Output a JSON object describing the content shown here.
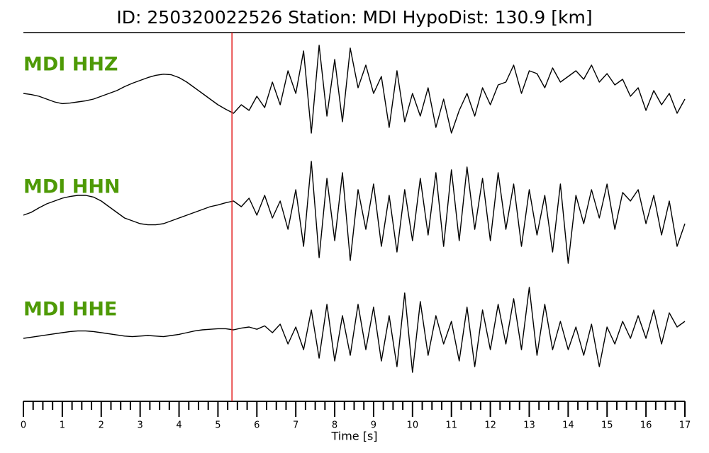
{
  "chart_data": {
    "type": "line",
    "title": "ID: 250320022526   Station: MDI   HypoDist:   130.9 [km]",
    "xlabel": "Time [s]",
    "xlim": [
      0,
      17
    ],
    "xticks": [
      0,
      1,
      2,
      3,
      4,
      5,
      6,
      7,
      8,
      9,
      10,
      11,
      12,
      13,
      14,
      15,
      16,
      17
    ],
    "xticks_minor": [
      0.25,
      0.5,
      0.75,
      1.25,
      1.5,
      1.75,
      2.25,
      2.5,
      2.75,
      3.25,
      3.5,
      3.75,
      4.25,
      4.5,
      4.75,
      5.25,
      5.5,
      5.75,
      6.25,
      6.5,
      6.75,
      7.25,
      7.5,
      7.75,
      8.25,
      8.5,
      8.75,
      9.25,
      9.5,
      9.75,
      10.25,
      10.5,
      10.75,
      11.25,
      11.5,
      11.75,
      12.25,
      12.5,
      12.75,
      13.25,
      13.5,
      13.75,
      14.25,
      14.5,
      14.75,
      15.25,
      15.5,
      15.75,
      16.25,
      16.5,
      16.75
    ],
    "ylim": [
      -1,
      1
    ],
    "pick_time": 5.36,
    "pick_color": "#e31a1c",
    "label_color": "#4e9a06",
    "x": [
      0,
      0.2,
      0.4,
      0.6,
      0.8,
      1,
      1.2,
      1.4,
      1.6,
      1.8,
      2,
      2.2,
      2.4,
      2.6,
      2.8,
      3,
      3.2,
      3.4,
      3.6,
      3.8,
      4,
      4.2,
      4.4,
      4.6,
      4.8,
      5,
      5.2,
      5.4,
      5.6,
      5.8,
      6,
      6.2,
      6.4,
      6.6,
      6.8,
      7,
      7.2,
      7.4,
      7.6,
      7.8,
      8,
      8.2,
      8.4,
      8.6,
      8.8,
      9,
      9.2,
      9.4,
      9.6,
      9.8,
      10,
      10.2,
      10.4,
      10.6,
      10.8,
      11,
      11.2,
      11.4,
      11.6,
      11.8,
      12,
      12.2,
      12.4,
      12.6,
      12.8,
      13,
      13.2,
      13.4,
      13.6,
      13.8,
      14,
      14.2,
      14.4,
      14.6,
      14.8,
      15,
      15.2,
      15.4,
      15.6,
      15.8,
      16,
      16.2,
      16.4,
      16.6,
      16.8,
      17
    ],
    "series": [
      {
        "name": "MDI HHZ",
        "color": "#000000",
        "values": [
          0.1,
          0.08,
          0.05,
          0.0,
          -0.05,
          -0.08,
          -0.07,
          -0.05,
          -0.03,
          0.0,
          0.05,
          0.1,
          0.15,
          0.22,
          0.28,
          0.33,
          0.38,
          0.42,
          0.44,
          0.43,
          0.38,
          0.3,
          0.2,
          0.1,
          0.0,
          -0.1,
          -0.18,
          -0.25,
          -0.1,
          -0.2,
          0.05,
          -0.15,
          0.3,
          -0.1,
          0.5,
          0.1,
          0.85,
          -0.6,
          0.95,
          -0.3,
          0.7,
          -0.4,
          0.9,
          0.2,
          0.6,
          0.1,
          0.4,
          -0.5,
          0.5,
          -0.4,
          0.1,
          -0.3,
          0.2,
          -0.5,
          0.0,
          -0.6,
          -0.2,
          0.1,
          -0.3,
          0.2,
          -0.1,
          0.25,
          0.3,
          0.6,
          0.1,
          0.5,
          0.45,
          0.2,
          0.55,
          0.3,
          0.4,
          0.5,
          0.35,
          0.6,
          0.3,
          0.45,
          0.25,
          0.35,
          0.05,
          0.2,
          -0.2,
          0.15,
          -0.1,
          0.1,
          -0.25,
          0.0
        ]
      },
      {
        "name": "MDI HHN",
        "color": "#000000",
        "values": [
          -0.05,
          0.0,
          0.08,
          0.15,
          0.2,
          0.25,
          0.28,
          0.3,
          0.3,
          0.27,
          0.2,
          0.1,
          0.0,
          -0.1,
          -0.15,
          -0.2,
          -0.22,
          -0.22,
          -0.2,
          -0.15,
          -0.1,
          -0.05,
          0.0,
          0.05,
          0.1,
          0.13,
          0.17,
          0.2,
          0.1,
          0.25,
          -0.05,
          0.3,
          -0.1,
          0.2,
          -0.3,
          0.4,
          -0.6,
          0.9,
          -0.8,
          0.6,
          -0.5,
          0.7,
          -0.85,
          0.4,
          -0.3,
          0.5,
          -0.6,
          0.3,
          -0.7,
          0.4,
          -0.5,
          0.6,
          -0.4,
          0.7,
          -0.6,
          0.75,
          -0.5,
          0.8,
          -0.3,
          0.6,
          -0.5,
          0.7,
          -0.3,
          0.5,
          -0.6,
          0.4,
          -0.4,
          0.3,
          -0.7,
          0.5,
          -0.9,
          0.3,
          -0.2,
          0.4,
          -0.1,
          0.5,
          -0.3,
          0.35,
          0.2,
          0.4,
          -0.2,
          0.3,
          -0.4,
          0.2,
          -0.6,
          -0.2
        ]
      },
      {
        "name": "MDI HHE",
        "color": "#000000",
        "values": [
          -0.1,
          -0.08,
          -0.06,
          -0.04,
          -0.02,
          0.0,
          0.02,
          0.03,
          0.03,
          0.02,
          0.0,
          -0.02,
          -0.04,
          -0.06,
          -0.07,
          -0.06,
          -0.05,
          -0.06,
          -0.07,
          -0.05,
          -0.03,
          0.0,
          0.03,
          0.05,
          0.06,
          0.07,
          0.07,
          0.05,
          0.08,
          0.1,
          0.06,
          0.12,
          0.0,
          0.15,
          -0.2,
          0.1,
          -0.3,
          0.4,
          -0.45,
          0.5,
          -0.5,
          0.3,
          -0.4,
          0.5,
          -0.3,
          0.45,
          -0.5,
          0.3,
          -0.6,
          0.7,
          -0.7,
          0.55,
          -0.4,
          0.3,
          -0.2,
          0.2,
          -0.5,
          0.45,
          -0.6,
          0.4,
          -0.3,
          0.5,
          -0.2,
          0.6,
          -0.3,
          0.8,
          -0.4,
          0.5,
          -0.3,
          0.2,
          -0.3,
          0.1,
          -0.4,
          0.15,
          -0.6,
          0.1,
          -0.2,
          0.2,
          -0.1,
          0.3,
          -0.1,
          0.4,
          -0.2,
          0.35,
          0.1,
          0.2
        ]
      }
    ]
  }
}
